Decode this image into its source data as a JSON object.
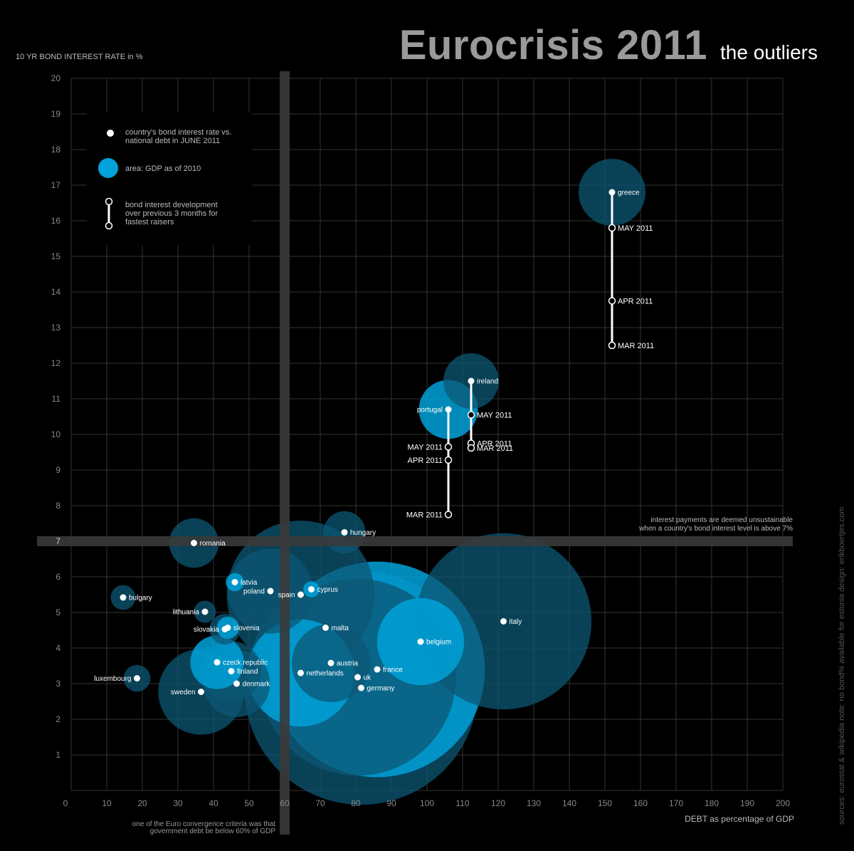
{
  "title": "Eurocrisis 2011",
  "subtitle": "the outliers",
  "source_note": "sources: eurostat & wikipedia   note: no bond% available for estonia   design: erikboertjes.com",
  "colors": {
    "background": "#000000",
    "grid": "#333333",
    "threshold_bar": "#3a3a3a",
    "bubble_bright": "#00a2d9",
    "bubble_dark": "#0c5774",
    "text": "#ffffff"
  },
  "legend": {
    "dot_text": "country's bond interest rate vs.\nnational debt in JUNE 2011",
    "area_text": "area: GDP as of 2010",
    "dev_text": "bond interest development\nover previous 3 months for\nfastest raisers"
  },
  "annotations": {
    "threshold_7": "interest payments are deemed unsustainable\nwhen a country's bond interest level is above 7%",
    "threshold_60": "one of the Euro convergence criteria was that\ngovernment debt be below 60% of GDP"
  },
  "chart_data": {
    "type": "scatter",
    "title": "Eurocrisis 2011",
    "subtitle": "the outliers",
    "xlabel": "DEBT as percentage of GDP",
    "ylabel": "10 YR BOND INTEREST RATE in %",
    "xlim": [
      0,
      200
    ],
    "ylim": [
      0,
      20
    ],
    "x_ticks": [
      0,
      10,
      20,
      30,
      40,
      50,
      60,
      70,
      80,
      90,
      100,
      110,
      120,
      130,
      140,
      150,
      160,
      170,
      180,
      190,
      200
    ],
    "y_ticks": [
      1,
      2,
      3,
      4,
      5,
      6,
      7,
      8,
      9,
      10,
      11,
      12,
      13,
      14,
      15,
      16,
      17,
      18,
      19,
      20
    ],
    "grid": true,
    "legend_position": "top-left",
    "thresholds": {
      "x": 60,
      "y": 7
    },
    "bubble_size_meaning": "area: GDP as of 2010",
    "points": [
      {
        "name": "greece",
        "x": 152,
        "y": 16.8,
        "gdp_radius": 1.0,
        "color": "dark",
        "label_side": "right"
      },
      {
        "name": "ireland",
        "x": 112.4,
        "y": 11.5,
        "gdp_radius": 0.83,
        "color": "dark",
        "label_side": "right"
      },
      {
        "name": "portugal",
        "x": 106,
        "y": 10.7,
        "gdp_radius": 0.88,
        "color": "bright",
        "label_side": "left"
      },
      {
        "name": "hungary",
        "x": 76.8,
        "y": 7.25,
        "gdp_radius": 0.63,
        "color": "dark",
        "label_side": "right"
      },
      {
        "name": "romania",
        "x": 34.5,
        "y": 6.95,
        "gdp_radius": 0.74,
        "color": "dark",
        "label_side": "right"
      },
      {
        "name": "latvia",
        "x": 46,
        "y": 5.85,
        "gdp_radius": 0.27,
        "color": "bright",
        "label_side": "right"
      },
      {
        "name": "poland",
        "x": 56,
        "y": 5.6,
        "gdp_radius": 1.27,
        "color": "dark",
        "label_side": "left"
      },
      {
        "name": "spain",
        "x": 64.5,
        "y": 5.5,
        "gdp_radius": 2.21,
        "color": "dark",
        "label_side": "left"
      },
      {
        "name": "cyprus",
        "x": 67.5,
        "y": 5.65,
        "gdp_radius": 0.24,
        "color": "bright",
        "label_side": "right"
      },
      {
        "name": "bulgary",
        "x": 14.6,
        "y": 5.42,
        "gdp_radius": 0.37,
        "color": "dark",
        "label_side": "right"
      },
      {
        "name": "lithuania",
        "x": 37.6,
        "y": 5.02,
        "gdp_radius": 0.33,
        "color": "dark",
        "label_side": "left"
      },
      {
        "name": "italy",
        "x": 121.5,
        "y": 4.75,
        "gdp_radius": 2.63,
        "color": "dark",
        "label_side": "right"
      },
      {
        "name": "malta",
        "x": 71.5,
        "y": 4.57,
        "gdp_radius": 0.12,
        "color": "dark",
        "label_side": "right"
      },
      {
        "name": "slovakia",
        "x": 43.2,
        "y": 4.53,
        "gdp_radius": 0.46,
        "color": "dark",
        "label_side": "left"
      },
      {
        "name": "slovenia",
        "x": 44,
        "y": 4.57,
        "gdp_radius": 0.33,
        "color": "bright",
        "label_side": "right"
      },
      {
        "name": "belgium",
        "x": 98.2,
        "y": 4.18,
        "gdp_radius": 1.3,
        "color": "bright",
        "label_side": "right"
      },
      {
        "name": "czeck republic",
        "x": 41,
        "y": 3.6,
        "gdp_radius": 0.8,
        "color": "bright",
        "label_side": "right"
      },
      {
        "name": "austria",
        "x": 73,
        "y": 3.58,
        "gdp_radius": 1.17,
        "color": "dark",
        "label_side": "right"
      },
      {
        "name": "finland",
        "x": 45,
        "y": 3.35,
        "gdp_radius": 0.9,
        "color": "dark",
        "label_side": "right"
      },
      {
        "name": "netherlands",
        "x": 64.5,
        "y": 3.3,
        "gdp_radius": 1.6,
        "color": "bright",
        "label_side": "right"
      },
      {
        "name": "france",
        "x": 86,
        "y": 3.4,
        "gdp_radius": 3.22,
        "color": "bright",
        "label_side": "right"
      },
      {
        "name": "luxembourg",
        "x": 18.5,
        "y": 3.15,
        "gdp_radius": 0.4,
        "color": "dark",
        "label_side": "left"
      },
      {
        "name": "uk",
        "x": 80.5,
        "y": 3.18,
        "gdp_radius": 2.94,
        "color": "dark",
        "label_side": "right"
      },
      {
        "name": "denmark",
        "x": 46.5,
        "y": 3.0,
        "gdp_radius": 1.0,
        "color": "dark",
        "label_side": "right"
      },
      {
        "name": "germany",
        "x": 81.5,
        "y": 2.88,
        "gdp_radius": 3.49,
        "color": "dark",
        "label_side": "right"
      },
      {
        "name": "sweden",
        "x": 36.5,
        "y": 2.77,
        "gdp_radius": 1.28,
        "color": "dark",
        "label_side": "left"
      }
    ],
    "development": [
      {
        "country": "greece",
        "x": 152,
        "history": [
          {
            "label": "MAY 2011",
            "y": 15.8,
            "label_side": "right"
          },
          {
            "label": "APR 2011",
            "y": 13.75,
            "label_side": "right"
          },
          {
            "label": "MAR 2011",
            "y": 12.5,
            "label_side": "right"
          }
        ]
      },
      {
        "country": "ireland",
        "x": 112.4,
        "history": [
          {
            "label": "MAY 2011",
            "y": 10.55,
            "label_side": "right"
          },
          {
            "label": "APR 2011",
            "y": 9.75,
            "label_side": "right"
          },
          {
            "label": "MAR 2011",
            "y": 9.62,
            "label_side": "right"
          }
        ]
      },
      {
        "country": "portugal",
        "x": 106,
        "history": [
          {
            "label": "MAY 2011",
            "y": 9.65,
            "label_side": "left"
          },
          {
            "label": "APR 2011",
            "y": 9.28,
            "label_side": "left"
          },
          {
            "label": "MAR 2011",
            "y": 7.75,
            "label_side": "left"
          }
        ]
      }
    ]
  }
}
